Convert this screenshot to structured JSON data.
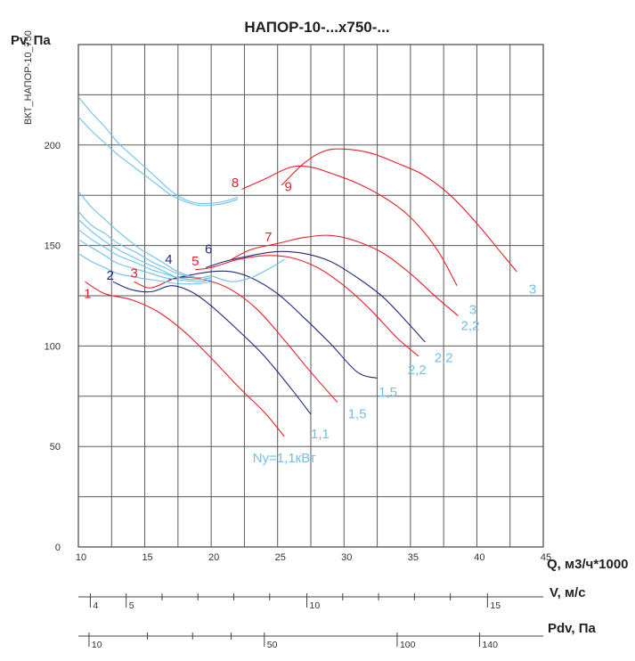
{
  "chart_data": {
    "type": "line",
    "title": "НАПОР-10-...х750-...",
    "side_code": "ВКТ_НАПОР-10_750",
    "ylabel": "Pv, Па",
    "xlabel": "Q, м3/ч*1000",
    "xlim": [
      10,
      45
    ],
    "ylim": [
      0,
      250
    ],
    "grid": true,
    "x_ticks": [
      "10",
      "15",
      "20",
      "25",
      "30",
      "35",
      "40",
      "45"
    ],
    "y_ticks": [
      "0",
      "50",
      "100",
      "150",
      "200"
    ],
    "v_scale": {
      "label": "V, м/с",
      "ticks": [
        {
          "v": 4,
          "q": 10.9,
          "label": "4"
        },
        {
          "v": 5,
          "q": 13.6,
          "label": "5"
        },
        {
          "v": 6,
          "q": 16.3
        },
        {
          "v": 7,
          "q": 19.0
        },
        {
          "v": 8,
          "q": 21.7
        },
        {
          "v": 9,
          "q": 24.4
        },
        {
          "v": 10,
          "q": 27.2,
          "label": "10"
        },
        {
          "v": 11,
          "q": 29.9
        },
        {
          "v": 12,
          "q": 32.6
        },
        {
          "v": 13,
          "q": 35.3
        },
        {
          "v": 14,
          "q": 38.0
        },
        {
          "v": 15,
          "q": 40.8,
          "label": "15"
        }
      ]
    },
    "pdv_scale": {
      "label": "Pdv, Па",
      "ticks": [
        {
          "p": 10,
          "q": 10.8,
          "label": "10"
        },
        {
          "p": 20,
          "q": 15.2
        },
        {
          "p": 30,
          "q": 18.6
        },
        {
          "p": 40,
          "q": 21.5
        },
        {
          "p": 50,
          "q": 24.0,
          "label": "50"
        },
        {
          "p": 100,
          "q": 34.0,
          "label": "100"
        },
        {
          "p": 140,
          "q": 40.2,
          "label": "140"
        }
      ]
    },
    "colors": {
      "red": "#e8202a",
      "blue": "#222a7a",
      "cyan": "#6ec1ea",
      "grid": "#5a5a5a"
    },
    "series": [
      {
        "color": "red",
        "points": [
          [
            10.5,
            132
          ],
          [
            12,
            126
          ],
          [
            14,
            123
          ],
          [
            16,
            117
          ],
          [
            18,
            107
          ],
          [
            20,
            94
          ],
          [
            22,
            80
          ],
          [
            24,
            67
          ],
          [
            25.5,
            55
          ]
        ]
      },
      {
        "color": "blue",
        "points": [
          [
            12.6,
            132
          ],
          [
            14,
            128
          ],
          [
            15.5,
            127
          ],
          [
            17,
            130
          ],
          [
            18.5,
            127
          ],
          [
            20,
            120
          ],
          [
            22,
            108
          ],
          [
            24,
            95
          ],
          [
            26,
            79
          ],
          [
            27.5,
            66
          ]
        ]
      },
      {
        "color": "red",
        "points": [
          [
            14.2,
            132
          ],
          [
            15.2,
            129
          ],
          [
            16,
            130
          ],
          [
            17.5,
            134
          ],
          [
            19.5,
            133
          ],
          [
            21.5,
            128
          ],
          [
            23.5,
            118
          ],
          [
            25.5,
            103
          ],
          [
            27.5,
            87
          ],
          [
            29.5,
            72
          ]
        ]
      },
      {
        "color": "blue",
        "points": [
          [
            16.8,
            133
          ],
          [
            18.2,
            135
          ],
          [
            20,
            137
          ],
          [
            21.5,
            137
          ],
          [
            23,
            134
          ],
          [
            25,
            126
          ],
          [
            27,
            114
          ],
          [
            29,
            101
          ],
          [
            31,
            87
          ],
          [
            32.5,
            84
          ]
        ]
      },
      {
        "color": "red",
        "points": [
          [
            18.8,
            138
          ],
          [
            20,
            139
          ],
          [
            22,
            143
          ],
          [
            24,
            145
          ],
          [
            26,
            144
          ],
          [
            28,
            139
          ],
          [
            30,
            130
          ],
          [
            32,
            118
          ],
          [
            34,
            104
          ],
          [
            35.6,
            95
          ]
        ]
      },
      {
        "color": "blue",
        "points": [
          [
            19.6,
            139
          ],
          [
            21,
            142
          ],
          [
            23,
            145
          ],
          [
            25,
            147
          ],
          [
            27,
            146
          ],
          [
            29,
            142
          ],
          [
            31,
            134
          ],
          [
            33,
            124
          ],
          [
            35,
            110
          ],
          [
            36.1,
            102
          ]
        ]
      },
      {
        "color": "red",
        "points": [
          [
            21.5,
            143
          ],
          [
            23,
            148
          ],
          [
            25,
            151
          ],
          [
            27,
            154
          ],
          [
            29,
            155
          ],
          [
            31,
            152
          ],
          [
            33,
            146
          ],
          [
            35,
            136
          ],
          [
            37,
            124
          ],
          [
            38.6,
            115
          ]
        ]
      },
      {
        "color": "red",
        "points": [
          [
            22.3,
            178
          ],
          [
            24,
            183
          ],
          [
            26,
            189
          ],
          [
            27.5,
            189
          ],
          [
            29,
            186
          ],
          [
            31,
            181
          ],
          [
            33,
            174
          ],
          [
            35,
            164
          ],
          [
            37,
            148
          ],
          [
            38.5,
            130
          ]
        ]
      },
      {
        "color": "red",
        "points": [
          [
            25.3,
            180
          ],
          [
            27,
            191
          ],
          [
            28.5,
            197
          ],
          [
            30,
            198
          ],
          [
            32,
            196
          ],
          [
            34,
            191
          ],
          [
            36,
            185
          ],
          [
            38,
            175
          ],
          [
            40,
            161
          ],
          [
            42,
            145
          ],
          [
            43,
            137
          ]
        ]
      },
      {
        "color": "cyan",
        "points": [
          [
            10,
            177
          ],
          [
            11,
            169
          ],
          [
            12,
            163
          ],
          [
            13,
            157
          ],
          [
            14.5,
            149
          ],
          [
            15.5,
            145
          ],
          [
            16.5,
            141
          ],
          [
            17.5,
            137
          ],
          [
            19,
            134
          ],
          [
            20,
            135
          ]
        ]
      },
      {
        "color": "cyan",
        "points": [
          [
            10,
            167
          ],
          [
            11,
            160
          ],
          [
            12,
            156
          ],
          [
            13,
            151
          ],
          [
            14.5,
            146
          ],
          [
            15.5,
            142
          ],
          [
            16.5,
            139
          ],
          [
            17.5,
            136
          ],
          [
            19,
            134
          ],
          [
            20,
            135
          ]
        ]
      },
      {
        "color": "cyan",
        "points": [
          [
            10,
            163
          ],
          [
            11,
            157
          ],
          [
            12,
            152
          ],
          [
            13,
            148
          ],
          [
            14.5,
            143
          ],
          [
            15.5,
            140
          ],
          [
            16.5,
            137
          ],
          [
            17.5,
            134
          ],
          [
            19,
            133
          ],
          [
            20,
            134
          ]
        ]
      },
      {
        "color": "cyan",
        "points": [
          [
            10,
            158
          ],
          [
            11,
            153
          ],
          [
            12,
            149
          ],
          [
            13,
            145
          ],
          [
            14.5,
            141
          ],
          [
            15.5,
            138
          ],
          [
            16.5,
            136
          ],
          [
            17.5,
            134
          ],
          [
            19,
            133
          ],
          [
            20,
            134
          ]
        ]
      },
      {
        "color": "cyan",
        "points": [
          [
            10,
            153
          ],
          [
            11,
            149
          ],
          [
            12,
            145
          ],
          [
            13,
            141
          ],
          [
            14.5,
            138
          ],
          [
            15.5,
            136
          ],
          [
            16.5,
            134
          ],
          [
            17.5,
            133
          ],
          [
            19,
            132
          ],
          [
            20,
            133
          ]
        ]
      },
      {
        "color": "cyan",
        "points": [
          [
            10,
            146
          ],
          [
            11,
            142
          ],
          [
            12,
            139
          ],
          [
            13,
            136
          ],
          [
            14.5,
            134
          ],
          [
            15.5,
            133
          ],
          [
            16.5,
            132
          ],
          [
            17.5,
            131
          ],
          [
            19,
            131
          ],
          [
            20,
            132
          ]
        ]
      },
      {
        "color": "cyan",
        "points": [
          [
            10,
            224
          ],
          [
            11,
            216
          ],
          [
            12,
            209
          ],
          [
            13,
            201
          ],
          [
            14,
            195
          ],
          [
            15,
            189
          ],
          [
            16,
            183
          ],
          [
            17,
            177
          ],
          [
            18,
            173
          ],
          [
            19,
            171
          ],
          [
            20,
            171
          ],
          [
            21,
            172
          ],
          [
            22,
            174
          ]
        ]
      },
      {
        "color": "cyan",
        "points": [
          [
            10,
            214
          ],
          [
            11,
            207
          ],
          [
            12,
            201
          ],
          [
            13,
            195
          ],
          [
            14,
            190
          ],
          [
            15,
            185
          ],
          [
            16,
            180
          ],
          [
            17,
            175
          ],
          [
            18,
            172
          ],
          [
            19,
            170
          ],
          [
            20,
            170
          ],
          [
            21,
            171
          ],
          [
            22,
            173
          ]
        ]
      },
      {
        "color": "cyan",
        "points": [
          [
            20,
            135
          ],
          [
            21.5,
            132
          ],
          [
            23,
            134
          ],
          [
            24.5,
            139
          ],
          [
            25.5,
            143
          ]
        ]
      }
    ],
    "labels": [
      {
        "text": "1",
        "color": "red",
        "q": 10.7,
        "p": 124
      },
      {
        "text": "2",
        "color": "blue",
        "q": 12.4,
        "p": 133
      },
      {
        "text": "3",
        "color": "red",
        "q": 14.2,
        "p": 134
      },
      {
        "text": "4",
        "color": "blue",
        "q": 16.8,
        "p": 141
      },
      {
        "text": "5",
        "color": "red",
        "q": 18.8,
        "p": 140
      },
      {
        "text": "6",
        "color": "blue",
        "q": 19.8,
        "p": 146
      },
      {
        "text": "7",
        "color": "red",
        "q": 24.3,
        "p": 152
      },
      {
        "text": "8",
        "color": "red",
        "q": 21.8,
        "p": 179
      },
      {
        "text": "9",
        "color": "red",
        "q": 25.8,
        "p": 177
      },
      {
        "text": "Nу=1,1кВт",
        "color": "cyan",
        "q": 25.5,
        "p": 42
      },
      {
        "text": "1,1",
        "color": "cyan",
        "q": 28.2,
        "p": 54
      },
      {
        "text": "1,5",
        "color": "cyan",
        "q": 31.0,
        "p": 64
      },
      {
        "text": "1,5",
        "color": "cyan",
        "q": 33.3,
        "p": 75
      },
      {
        "text": "2,2",
        "color": "cyan",
        "q": 35.5,
        "p": 86
      },
      {
        "text": "2,2",
        "color": "cyan",
        "q": 37.5,
        "p": 92
      },
      {
        "text": "2,2",
        "color": "cyan",
        "q": 39.5,
        "p": 108
      },
      {
        "text": "3",
        "color": "cyan",
        "q": 39.7,
        "p": 116
      },
      {
        "text": "3",
        "color": "cyan",
        "q": 44.2,
        "p": 126
      }
    ]
  }
}
